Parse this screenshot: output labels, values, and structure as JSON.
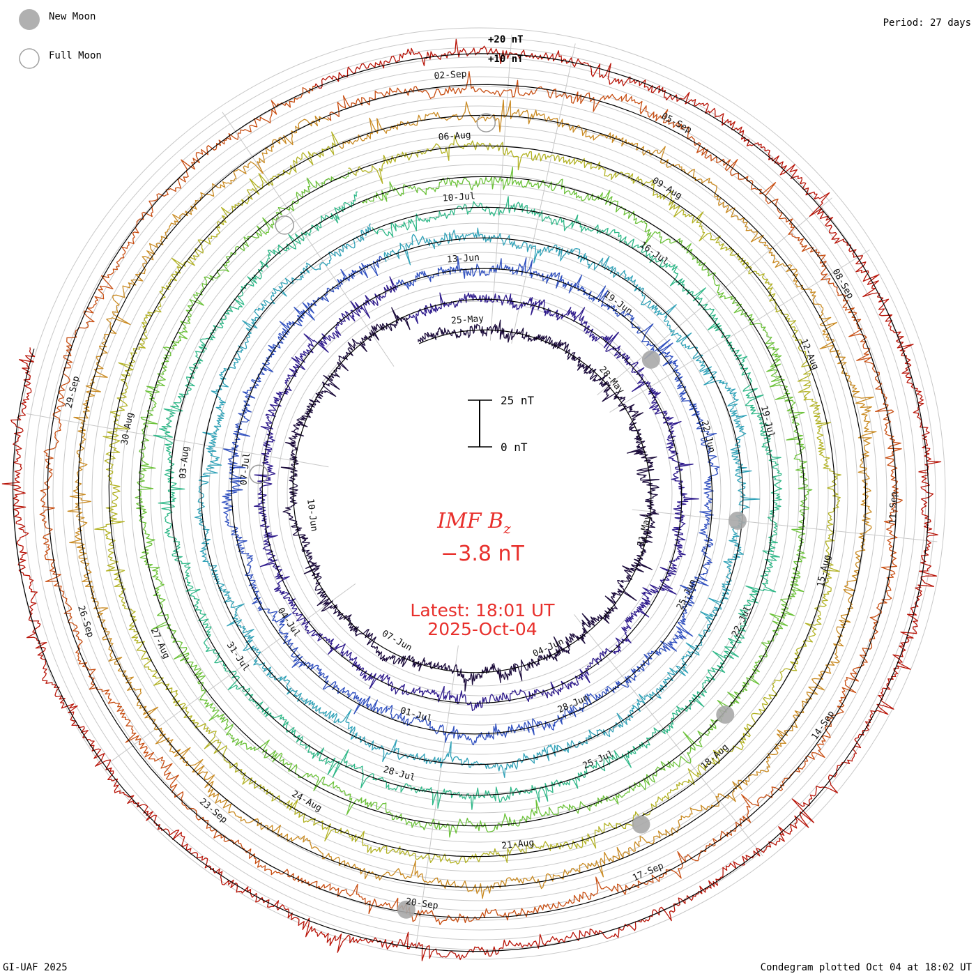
{
  "legend": {
    "new_moon": "New Moon",
    "full_moon": "Full Moon"
  },
  "period": "Period: 27 days",
  "footer": {
    "left": "GI-UAF 2025",
    "right": "Condegram plotted Oct 04 at 18:02 UT"
  },
  "center": {
    "title": "IMF B",
    "subscript": "z",
    "value": "−3.8 nT",
    "latest_line1": "Latest: 18:01 UT",
    "latest_line2": "2025-Oct-04"
  },
  "scale_bar": {
    "top": "25 nT",
    "bottom": "0 nT"
  },
  "ring_scale": {
    "outer": "+20 nT",
    "inner": "+10 nT"
  },
  "colors": {
    "red": "#e8302c",
    "rings": [
      "#1a0a3a",
      "#2e1a8c",
      "#2f4fbf",
      "#31a2b8",
      "#2fb888",
      "#6cc23a",
      "#b2b224",
      "#c98a22",
      "#c84e12",
      "#b81408"
    ]
  },
  "chart_data": {
    "type": "condegram",
    "quantity": "IMF Bz",
    "unit": "nT",
    "period_days": 27,
    "latest_value": -3.8,
    "date_labels": [
      [
        "25-May",
        "28-May",
        "31-May",
        "04-Jun",
        "07-Jun",
        "10-Jun"
      ],
      [
        "13-Jun",
        "19-Jun",
        "22-Jun",
        "25-Jun",
        "28-Jun",
        "01-Jul",
        "04-Jul",
        "07-Jul"
      ],
      [
        "10-Jul",
        "16-Jul",
        "19-Jul",
        "22-Jul",
        "25-Jul",
        "28-Jul",
        "31-Jul",
        "03-Aug"
      ],
      [
        "06-Aug",
        "09-Aug",
        "12-Aug",
        "15-Aug",
        "18-Aug",
        "21-Aug",
        "24-Aug",
        "27-Aug",
        "30-Aug"
      ],
      [
        "02-Sep",
        "05-Sep",
        "08-Sep",
        "11-Sep",
        "14-Sep",
        "17-Sep",
        "20-Sep",
        "23-Sep",
        "26-Sep",
        "29-Sep"
      ]
    ]
  }
}
